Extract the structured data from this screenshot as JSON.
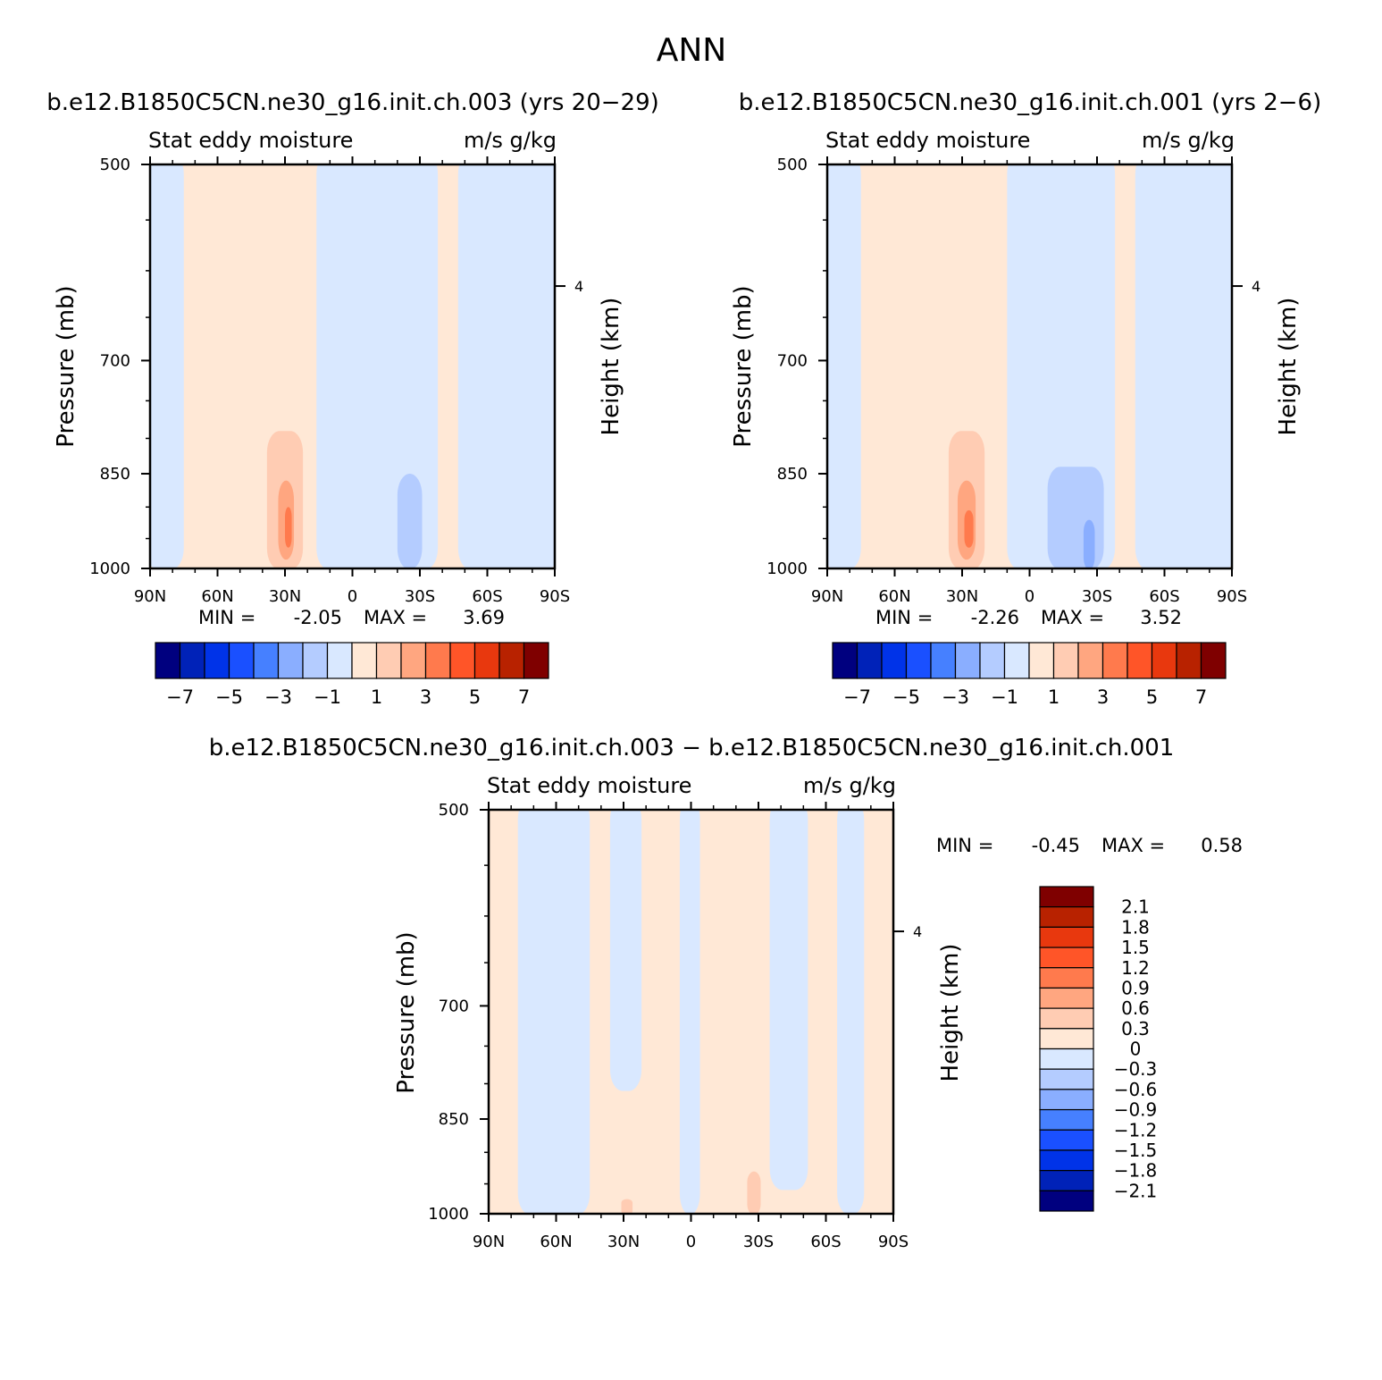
{
  "figure": {
    "title": "ANN"
  },
  "palettes": {
    "full": [
      "#00007f",
      "#0022b8",
      "#0033e8",
      "#1a50ff",
      "#4680ff",
      "#8aaeff",
      "#b4ccff",
      "#d9e8ff",
      "#ffe8d6",
      "#ffccb3",
      "#ffa680",
      "#ff7a4d",
      "#ff5528",
      "#e8380e",
      "#b82200",
      "#7f0000"
    ],
    "diff": [
      "#00007f",
      "#0022b8",
      "#0033e8",
      "#1a50ff",
      "#4680ff",
      "#8aaeff",
      "#b4ccff",
      "#d9e8ff",
      "#ffe8d6",
      "#ffccb3",
      "#ffa680",
      "#ff7a4d",
      "#ff5528",
      "#e8380e",
      "#b82200",
      "#7f0000"
    ]
  },
  "chart_data": [
    {
      "type": "heatmap",
      "title": "b.e12.B1850C5CN.ne30_g16.init.ch.003 (yrs 20-29)",
      "left_label": "Stat eddy moisture",
      "right_label": "m/s g/kg",
      "ylabel": "Pressure (mb)",
      "ylabel_right": "Height (km)",
      "xlim": [
        90,
        -90
      ],
      "x_ticks": [
        {
          "v": 90,
          "label": "90N"
        },
        {
          "v": 60,
          "label": "60N"
        },
        {
          "v": 30,
          "label": "30N"
        },
        {
          "v": 0,
          "label": "0"
        },
        {
          "v": -30,
          "label": "30S"
        },
        {
          "v": -60,
          "label": "60S"
        },
        {
          "v": -90,
          "label": "90S"
        }
      ],
      "ylim": [
        1000,
        500
      ],
      "y_scale": "log",
      "y_ticks": [
        500,
        700,
        850,
        1000
      ],
      "height_ticks": [
        {
          "p": 616,
          "label": "4"
        }
      ],
      "min_label": "MIN =",
      "min": "-2.05",
      "max_label": "MAX =",
      "max": "3.69",
      "levels": [
        -7,
        -6,
        -5,
        -4,
        -3,
        -2,
        -1,
        0,
        1,
        2,
        3,
        4,
        5,
        6,
        7
      ],
      "colorbar_labels": [
        "-7",
        "-5",
        "-3",
        "-1",
        "1",
        "3",
        "5",
        "7"
      ],
      "regions": [
        {
          "cls": 7,
          "x": [
            92,
            75
          ],
          "p": [
            490,
            1002
          ]
        },
        {
          "cls": 7,
          "x": [
            16,
            -38
          ],
          "p": [
            490,
            1002
          ]
        },
        {
          "cls": 7,
          "x": [
            -47,
            -92
          ],
          "p": [
            490,
            1002
          ]
        },
        {
          "cls": 6,
          "x": [
            -20,
            -31
          ],
          "p": [
            850,
            1002
          ]
        },
        {
          "cls": 9,
          "x": [
            38,
            22
          ],
          "p": [
            790,
            1002
          ]
        },
        {
          "cls": 10,
          "x": [
            33,
            26
          ],
          "p": [
            860,
            985
          ]
        },
        {
          "cls": 11,
          "x": [
            30,
            27
          ],
          "p": [
            900,
            965
          ]
        }
      ]
    },
    {
      "type": "heatmap",
      "title": "b.e12.B1850C5CN.ne30_g16.init.ch.001 (yrs 2-6)",
      "left_label": "Stat eddy moisture",
      "right_label": "m/s g/kg",
      "ylabel": "Pressure (mb)",
      "ylabel_right": "Height (km)",
      "xlim": [
        90,
        -90
      ],
      "x_ticks": [
        {
          "v": 90,
          "label": "90N"
        },
        {
          "v": 60,
          "label": "60N"
        },
        {
          "v": 30,
          "label": "30N"
        },
        {
          "v": 0,
          "label": "0"
        },
        {
          "v": -30,
          "label": "30S"
        },
        {
          "v": -60,
          "label": "60S"
        },
        {
          "v": -90,
          "label": "90S"
        }
      ],
      "ylim": [
        1000,
        500
      ],
      "y_scale": "log",
      "y_ticks": [
        500,
        700,
        850,
        1000
      ],
      "height_ticks": [
        {
          "p": 616,
          "label": "4"
        }
      ],
      "min_label": "MIN =",
      "min": "-2.26",
      "max_label": "MAX =",
      "max": "3.52",
      "levels": [
        -7,
        -6,
        -5,
        -4,
        -3,
        -2,
        -1,
        0,
        1,
        2,
        3,
        4,
        5,
        6,
        7
      ],
      "colorbar_labels": [
        "-7",
        "-5",
        "-3",
        "-1",
        "1",
        "3",
        "5",
        "7"
      ],
      "regions": [
        {
          "cls": 7,
          "x": [
            92,
            75
          ],
          "p": [
            490,
            1002
          ]
        },
        {
          "cls": 7,
          "x": [
            10,
            -38
          ],
          "p": [
            490,
            1002
          ]
        },
        {
          "cls": 7,
          "x": [
            -47,
            -92
          ],
          "p": [
            490,
            1002
          ]
        },
        {
          "cls": 6,
          "x": [
            -8,
            -33
          ],
          "p": [
            840,
            1002
          ]
        },
        {
          "cls": 5,
          "x": [
            -24,
            -29
          ],
          "p": [
            920,
            1002
          ]
        },
        {
          "cls": 9,
          "x": [
            36,
            20
          ],
          "p": [
            790,
            1002
          ]
        },
        {
          "cls": 10,
          "x": [
            32,
            24
          ],
          "p": [
            860,
            985
          ]
        },
        {
          "cls": 11,
          "x": [
            29,
            25
          ],
          "p": [
            905,
            965
          ]
        }
      ]
    },
    {
      "type": "heatmap",
      "title": "b.e12.B1850C5CN.ne30_g16.init.ch.003 - b.e12.B1850C5CN.ne30_g16.init.ch.001",
      "left_label": "Stat eddy moisture",
      "right_label": "m/s g/kg",
      "ylabel": "Pressure (mb)",
      "ylabel_right": "Height (km)",
      "xlim": [
        90,
        -90
      ],
      "x_ticks": [
        {
          "v": 90,
          "label": "90N"
        },
        {
          "v": 60,
          "label": "60N"
        },
        {
          "v": 30,
          "label": "30N"
        },
        {
          "v": 0,
          "label": "0"
        },
        {
          "v": -30,
          "label": "30S"
        },
        {
          "v": -60,
          "label": "60S"
        },
        {
          "v": -90,
          "label": "90S"
        }
      ],
      "ylim": [
        1000,
        500
      ],
      "y_scale": "log",
      "y_ticks": [
        500,
        700,
        850,
        1000
      ],
      "height_ticks": [
        {
          "p": 616,
          "label": "4"
        }
      ],
      "min_label": "MIN =",
      "min": "-0.45",
      "max_label": "MAX =",
      "max": "0.58",
      "levels": [
        -2.1,
        -1.8,
        -1.5,
        -1.2,
        -0.9,
        -0.6,
        -0.3,
        0,
        0.3,
        0.6,
        0.9,
        1.2,
        1.5,
        1.8,
        2.1
      ],
      "colorbar_labels": [
        "2.1",
        "1.8",
        "1.5",
        "1.2",
        "0.9",
        "0.6",
        "0.3",
        "0",
        "-0.3",
        "-0.6",
        "-0.9",
        "-1.2",
        "-1.5",
        "-1.8",
        "-2.1"
      ],
      "regions": [
        {
          "cls": 7,
          "x": [
            77,
            45
          ],
          "p": [
            490,
            1002
          ]
        },
        {
          "cls": 7,
          "x": [
            36,
            22
          ],
          "p": [
            490,
            810
          ]
        },
        {
          "cls": 7,
          "x": [
            5,
            -4
          ],
          "p": [
            490,
            1002
          ]
        },
        {
          "cls": 7,
          "x": [
            -35,
            -52
          ],
          "p": [
            490,
            960
          ]
        },
        {
          "cls": 7,
          "x": [
            -65,
            -77
          ],
          "p": [
            490,
            1002
          ]
        },
        {
          "cls": 9,
          "x": [
            -25,
            -31
          ],
          "p": [
            930,
            1002
          ]
        },
        {
          "cls": 9,
          "x": [
            31,
            26
          ],
          "p": [
            975,
            1002
          ]
        }
      ]
    }
  ]
}
